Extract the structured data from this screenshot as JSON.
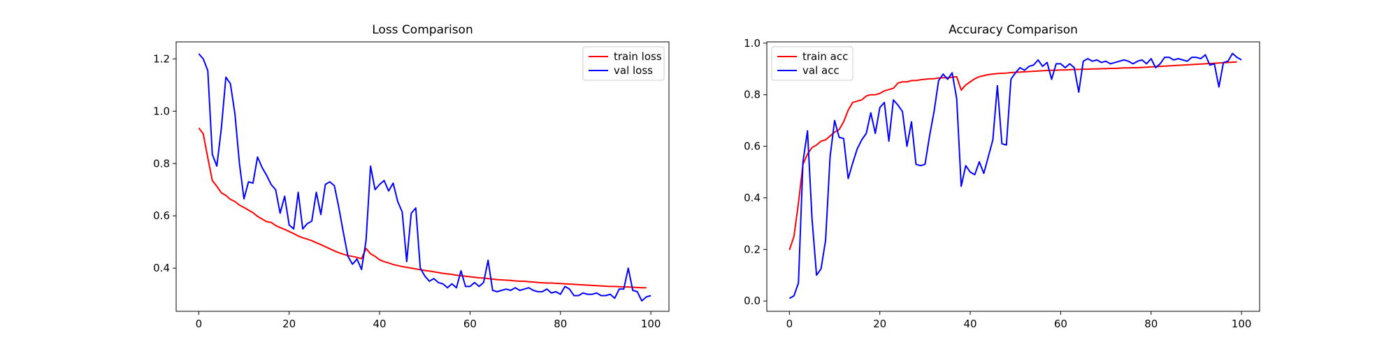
{
  "chart_data": [
    {
      "type": "line",
      "title": "Loss Comparison",
      "xlabel": "",
      "ylabel": "",
      "xlim": [
        -5,
        104
      ],
      "ylim": [
        0.235,
        1.265
      ],
      "xticks": [
        0,
        20,
        40,
        60,
        80,
        100
      ],
      "yticks": [
        0.4,
        0.6,
        0.8,
        1.0,
        1.2
      ],
      "ytick_labels": [
        "0.4",
        "0.6",
        "0.8",
        "1.0",
        "1.2"
      ],
      "grid": false,
      "legend": "top-right",
      "series": [
        {
          "name": "train loss",
          "color": "#ff0000",
          "values": [
            0.936,
            0.913,
            0.822,
            0.735,
            0.713,
            0.688,
            0.678,
            0.663,
            0.655,
            0.641,
            0.632,
            0.622,
            0.612,
            0.598,
            0.588,
            0.578,
            0.575,
            0.563,
            0.555,
            0.548,
            0.54,
            0.532,
            0.523,
            0.516,
            0.511,
            0.505,
            0.497,
            0.49,
            0.482,
            0.474,
            0.466,
            0.459,
            0.453,
            0.448,
            0.445,
            0.441,
            0.436,
            0.475,
            0.455,
            0.445,
            0.432,
            0.425,
            0.42,
            0.414,
            0.41,
            0.406,
            0.403,
            0.4,
            0.397,
            0.394,
            0.391,
            0.389,
            0.386,
            0.383,
            0.38,
            0.378,
            0.376,
            0.373,
            0.371,
            0.369,
            0.367,
            0.365,
            0.363,
            0.362,
            0.36,
            0.358,
            0.356,
            0.355,
            0.354,
            0.353,
            0.351,
            0.35,
            0.35,
            0.348,
            0.347,
            0.345,
            0.344,
            0.343,
            0.343,
            0.342,
            0.341,
            0.34,
            0.339,
            0.338,
            0.337,
            0.336,
            0.335,
            0.334,
            0.333,
            0.332,
            0.331,
            0.33,
            0.33,
            0.329,
            0.328,
            0.328,
            0.327,
            0.326,
            0.325,
            0.325
          ]
        },
        {
          "name": "val loss",
          "color": "#0000ff",
          "values": [
            1.22,
            1.2,
            1.155,
            0.835,
            0.79,
            0.935,
            1.13,
            1.105,
            0.99,
            0.8,
            0.665,
            0.73,
            0.725,
            0.825,
            0.785,
            0.755,
            0.72,
            0.7,
            0.61,
            0.675,
            0.565,
            0.55,
            0.69,
            0.55,
            0.57,
            0.58,
            0.69,
            0.605,
            0.72,
            0.73,
            0.715,
            0.63,
            0.535,
            0.445,
            0.415,
            0.435,
            0.395,
            0.505,
            0.79,
            0.7,
            0.72,
            0.735,
            0.695,
            0.725,
            0.655,
            0.615,
            0.425,
            0.61,
            0.63,
            0.4,
            0.37,
            0.35,
            0.36,
            0.345,
            0.34,
            0.325,
            0.34,
            0.325,
            0.39,
            0.33,
            0.33,
            0.345,
            0.33,
            0.345,
            0.43,
            0.315,
            0.31,
            0.315,
            0.32,
            0.315,
            0.325,
            0.315,
            0.32,
            0.325,
            0.315,
            0.31,
            0.31,
            0.32,
            0.305,
            0.31,
            0.3,
            0.33,
            0.32,
            0.295,
            0.295,
            0.305,
            0.3,
            0.3,
            0.305,
            0.295,
            0.295,
            0.3,
            0.285,
            0.32,
            0.32,
            0.4,
            0.315,
            0.31,
            0.275,
            0.29,
            0.295
          ]
        }
      ]
    },
    {
      "type": "line",
      "title": "Accuracy Comparison",
      "xlabel": "",
      "ylabel": "",
      "xlim": [
        -5,
        104
      ],
      "ylim": [
        -0.04,
        1.005
      ],
      "xticks": [
        0,
        20,
        40,
        60,
        80,
        100
      ],
      "yticks": [
        0.0,
        0.2,
        0.4,
        0.6,
        0.8,
        1.0
      ],
      "ytick_labels": [
        "0.0",
        "0.2",
        "0.4",
        "0.6",
        "0.8",
        "1.0"
      ],
      "grid": false,
      "legend": "top-left",
      "series": [
        {
          "name": "train acc",
          "color": "#ff0000",
          "values": [
            0.198,
            0.25,
            0.38,
            0.53,
            0.57,
            0.595,
            0.605,
            0.62,
            0.625,
            0.64,
            0.655,
            0.665,
            0.695,
            0.74,
            0.77,
            0.775,
            0.78,
            0.795,
            0.8,
            0.8,
            0.805,
            0.815,
            0.82,
            0.825,
            0.845,
            0.85,
            0.85,
            0.855,
            0.855,
            0.858,
            0.86,
            0.862,
            0.862,
            0.865,
            0.866,
            0.866,
            0.868,
            0.87,
            0.818,
            0.838,
            0.85,
            0.862,
            0.87,
            0.874,
            0.878,
            0.88,
            0.882,
            0.883,
            0.884,
            0.886,
            0.887,
            0.888,
            0.889,
            0.89,
            0.891,
            0.892,
            0.893,
            0.894,
            0.895,
            0.895,
            0.896,
            0.896,
            0.897,
            0.898,
            0.898,
            0.899,
            0.899,
            0.9,
            0.9,
            0.901,
            0.901,
            0.902,
            0.902,
            0.903,
            0.904,
            0.904,
            0.905,
            0.905,
            0.906,
            0.907,
            0.908,
            0.909,
            0.91,
            0.911,
            0.912,
            0.913,
            0.914,
            0.915,
            0.916,
            0.917,
            0.918,
            0.919,
            0.92,
            0.921,
            0.922,
            0.923,
            0.924,
            0.925,
            0.926,
            0.927
          ]
        },
        {
          "name": "val acc",
          "color": "#0000ff",
          "values": [
            0.01,
            0.02,
            0.07,
            0.54,
            0.66,
            0.32,
            0.1,
            0.125,
            0.235,
            0.56,
            0.7,
            0.635,
            0.63,
            0.475,
            0.535,
            0.59,
            0.625,
            0.65,
            0.73,
            0.65,
            0.75,
            0.77,
            0.62,
            0.78,
            0.76,
            0.735,
            0.6,
            0.695,
            0.53,
            0.525,
            0.53,
            0.64,
            0.735,
            0.855,
            0.88,
            0.86,
            0.885,
            0.785,
            0.445,
            0.525,
            0.5,
            0.49,
            0.54,
            0.495,
            0.56,
            0.625,
            0.835,
            0.61,
            0.605,
            0.86,
            0.885,
            0.905,
            0.895,
            0.91,
            0.915,
            0.935,
            0.91,
            0.925,
            0.86,
            0.92,
            0.92,
            0.905,
            0.92,
            0.905,
            0.81,
            0.93,
            0.94,
            0.93,
            0.935,
            0.925,
            0.93,
            0.92,
            0.925,
            0.93,
            0.935,
            0.93,
            0.92,
            0.93,
            0.935,
            0.92,
            0.94,
            0.905,
            0.92,
            0.945,
            0.945,
            0.935,
            0.94,
            0.935,
            0.93,
            0.945,
            0.945,
            0.94,
            0.955,
            0.915,
            0.92,
            0.83,
            0.925,
            0.93,
            0.96,
            0.945,
            0.935
          ]
        }
      ]
    }
  ]
}
